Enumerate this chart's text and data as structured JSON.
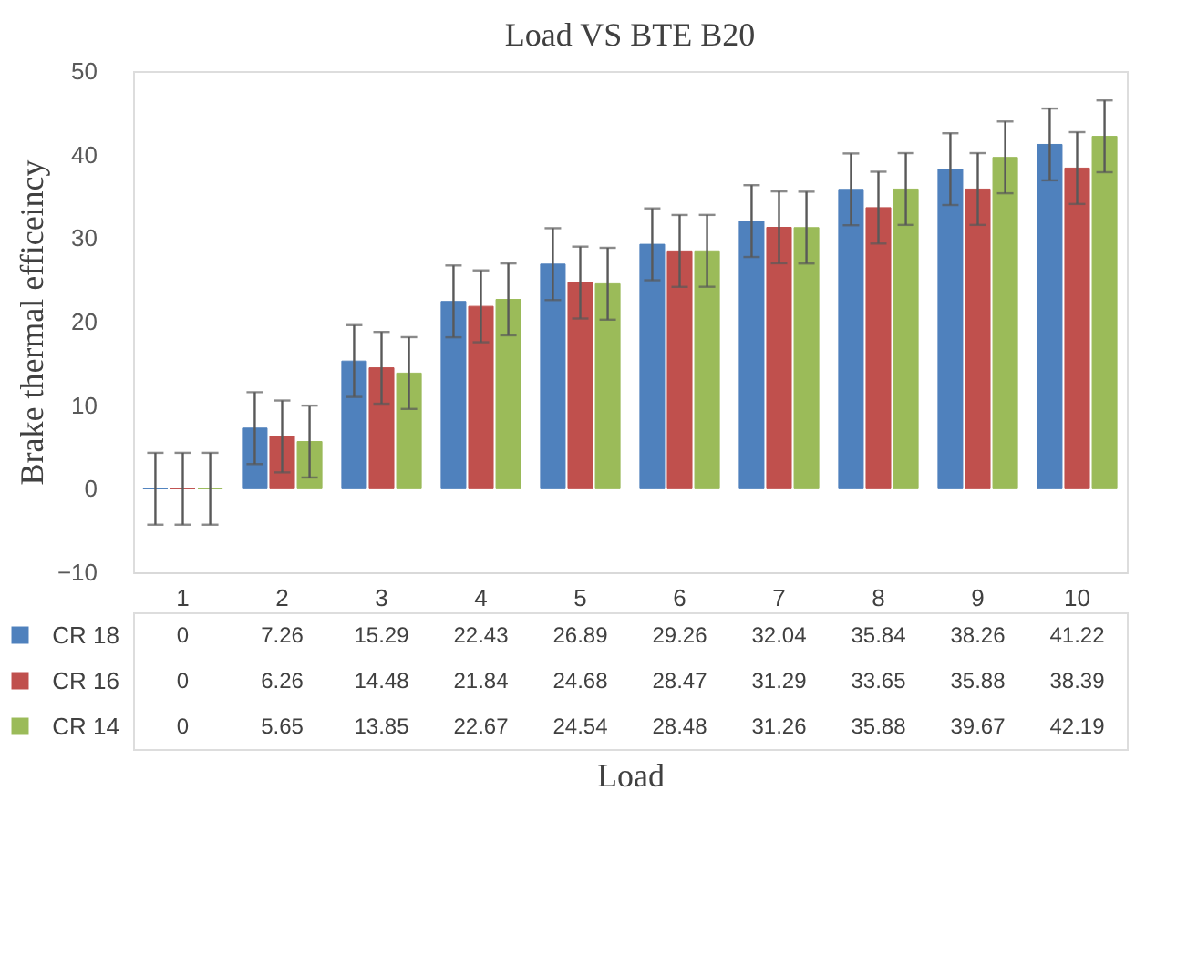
{
  "chart_data": {
    "type": "bar",
    "title": "Load VS BTE B20",
    "xlabel": "Load",
    "ylabel": "Brake thermal efficeincy",
    "categories": [
      "1",
      "2",
      "3",
      "4",
      "5",
      "6",
      "7",
      "8",
      "9",
      "10"
    ],
    "series": [
      {
        "name": "CR 18",
        "color": "#4f81bd",
        "values": [
          0,
          7.26,
          15.29,
          22.43,
          26.89,
          29.26,
          32.04,
          35.84,
          38.26,
          41.22
        ],
        "errors": [
          4.3,
          4.3,
          4.3,
          4.3,
          4.3,
          4.3,
          4.3,
          4.3,
          4.3,
          4.3
        ]
      },
      {
        "name": "CR 16",
        "color": "#c0504d",
        "values": [
          0,
          6.26,
          14.48,
          21.84,
          24.68,
          28.47,
          31.29,
          33.65,
          35.88,
          38.39
        ],
        "errors": [
          4.3,
          4.3,
          4.3,
          4.3,
          4.3,
          4.3,
          4.3,
          4.3,
          4.3,
          4.3
        ]
      },
      {
        "name": "CR 14",
        "color": "#9bbb59",
        "values": [
          0,
          5.65,
          13.85,
          22.67,
          24.54,
          28.48,
          31.26,
          35.88,
          39.67,
          42.19
        ],
        "errors": [
          4.3,
          4.3,
          4.3,
          4.3,
          4.3,
          4.3,
          4.3,
          4.3,
          4.3,
          4.3
        ]
      }
    ],
    "ylim": [
      -10,
      50
    ],
    "yticks": [
      -10,
      0,
      10,
      20,
      30,
      40,
      50
    ],
    "grid": false,
    "data_labels": true,
    "legend": "bottom left"
  }
}
